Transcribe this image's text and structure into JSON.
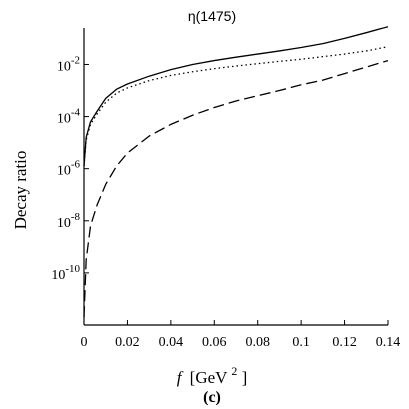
{
  "chart_data": {
    "type": "line",
    "title": "η(1475)",
    "xlabel_italic": "f",
    "xlabel_unit_base": "[GeV",
    "xlabel_unit_exp": "2",
    "xlabel_unit_close": "]",
    "ylabel": "Decay ratio",
    "panel_label": "(c)",
    "x_scale": "linear",
    "y_scale": "log",
    "xlim": [
      0,
      0.14
    ],
    "ylim_log10": [
      -12,
      -0.6
    ],
    "x_ticks": [
      0,
      0.02,
      0.04,
      0.06,
      0.08,
      0.1,
      0.12,
      0.14
    ],
    "x_tick_labels": [
      "0",
      "0.02",
      "0.04",
      "0.06",
      "0.08",
      "0.1",
      "0.12",
      "0.14"
    ],
    "y_ticks_log10": [
      -10,
      -8,
      -6,
      -4,
      -2
    ],
    "y_tick_labels": [
      {
        "base": "10",
        "exp": "-10"
      },
      {
        "base": "10",
        "exp": "-8"
      },
      {
        "base": "10",
        "exp": "-6"
      },
      {
        "base": "10",
        "exp": "-4"
      },
      {
        "base": "10",
        "exp": "-2"
      }
    ],
    "grid": false,
    "legend": "none",
    "series": [
      {
        "style": "solid",
        "x": [
          0,
          0.001,
          0.003,
          0.006,
          0.01,
          0.015,
          0.02,
          0.03,
          0.04,
          0.05,
          0.06,
          0.07,
          0.08,
          0.09,
          0.1,
          0.11,
          0.12,
          0.13,
          0.14
        ],
        "log10_y": [
          -5.9,
          -4.8,
          -4.2,
          -3.8,
          -3.3,
          -2.95,
          -2.75,
          -2.45,
          -2.2,
          -2.0,
          -1.85,
          -1.72,
          -1.6,
          -1.48,
          -1.35,
          -1.2,
          -1.0,
          -0.78,
          -0.55
        ]
      },
      {
        "style": "dotted",
        "x": [
          0,
          0.001,
          0.003,
          0.006,
          0.01,
          0.015,
          0.02,
          0.03,
          0.04,
          0.05,
          0.06,
          0.07,
          0.08,
          0.09,
          0.1,
          0.11,
          0.12,
          0.13,
          0.14
        ],
        "log10_y": [
          -5.9,
          -4.9,
          -4.3,
          -3.9,
          -3.45,
          -3.1,
          -2.9,
          -2.62,
          -2.42,
          -2.28,
          -2.16,
          -2.06,
          -1.97,
          -1.88,
          -1.8,
          -1.7,
          -1.6,
          -1.48,
          -1.32
        ]
      },
      {
        "style": "dashed",
        "x": [
          0,
          0.001,
          0.003,
          0.006,
          0.01,
          0.015,
          0.02,
          0.03,
          0.04,
          0.05,
          0.06,
          0.07,
          0.08,
          0.09,
          0.1,
          0.11,
          0.12,
          0.13,
          0.14
        ],
        "log10_y": [
          -11.7,
          -9.5,
          -8.2,
          -7.4,
          -6.6,
          -5.9,
          -5.4,
          -4.75,
          -4.3,
          -3.95,
          -3.65,
          -3.4,
          -3.2,
          -3.0,
          -2.78,
          -2.6,
          -2.35,
          -2.1,
          -1.85
        ]
      }
    ]
  }
}
